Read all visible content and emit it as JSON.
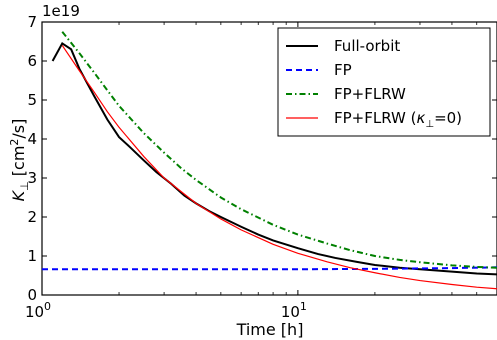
{
  "chart_data": {
    "type": "line",
    "x_scale": "log",
    "xlim": [
      1,
      60
    ],
    "ylim": [
      0,
      7
    ],
    "y_multiplier_text": "1e19",
    "xlabel": "Time [h]",
    "ylabel_main": "K",
    "ylabel_sub": "⊥",
    "ylabel_units_open": " [cm",
    "ylabel_units_sup": "2",
    "ylabel_units_close": "/s]",
    "x_ticks": [
      {
        "value": 1,
        "label_base": "10",
        "label_exp": "0"
      },
      {
        "value": 10,
        "label_base": "10",
        "label_exp": "1"
      }
    ],
    "y_ticks": [
      0,
      1,
      2,
      3,
      4,
      5,
      6,
      7
    ],
    "grid": false,
    "legend_position": "top-right",
    "series": [
      {
        "name": "Full-orbit",
        "color": "#000000",
        "dash": "solid",
        "x": [
          1.1,
          1.2,
          1.3,
          1.4,
          1.6,
          1.8,
          2.0,
          2.2,
          2.5,
          2.8,
          3.2,
          3.6,
          4.0,
          4.5,
          5.0,
          6.0,
          7.0,
          8.0,
          10,
          12,
          14,
          17,
          20,
          25,
          30,
          40,
          50,
          60
        ],
        "y": [
          6.0,
          6.45,
          6.3,
          5.8,
          5.1,
          4.5,
          4.05,
          3.8,
          3.45,
          3.15,
          2.85,
          2.55,
          2.35,
          2.15,
          2.0,
          1.75,
          1.55,
          1.4,
          1.2,
          1.05,
          0.95,
          0.85,
          0.77,
          0.7,
          0.66,
          0.6,
          0.55,
          0.53
        ]
      },
      {
        "name": "FP",
        "color": "#0000ff",
        "dash": "dashed",
        "x": [
          1,
          2,
          5,
          10,
          20,
          40,
          60
        ],
        "y": [
          0.66,
          0.66,
          0.66,
          0.66,
          0.67,
          0.69,
          0.71
        ]
      },
      {
        "name": "FP+FLRW",
        "color": "#008000",
        "dash": "dashdot",
        "x": [
          1.2,
          1.4,
          1.6,
          1.8,
          2.0,
          2.5,
          3.0,
          3.5,
          4.0,
          5.0,
          6.0,
          8.0,
          10,
          13,
          16,
          20,
          25,
          30,
          40,
          50,
          60
        ],
        "y": [
          6.75,
          6.2,
          5.7,
          5.25,
          4.85,
          4.15,
          3.65,
          3.25,
          2.95,
          2.5,
          2.2,
          1.8,
          1.55,
          1.32,
          1.15,
          1.0,
          0.9,
          0.84,
          0.76,
          0.72,
          0.7
        ]
      },
      {
        "name_main": "FP+FLRW (",
        "name_greek": "κ",
        "name_sub": "⊥",
        "name_tail": "=0)",
        "color": "#ff0000",
        "dash": "solid",
        "x": [
          1.2,
          1.4,
          1.6,
          1.8,
          2.0,
          2.5,
          3.0,
          3.5,
          4.0,
          5.0,
          6.0,
          8.0,
          10,
          13,
          16,
          20,
          25,
          30,
          40,
          50,
          60
        ],
        "y": [
          6.4,
          5.75,
          5.2,
          4.7,
          4.3,
          3.55,
          3.0,
          2.65,
          2.35,
          1.95,
          1.67,
          1.3,
          1.07,
          0.85,
          0.7,
          0.57,
          0.45,
          0.37,
          0.27,
          0.2,
          0.16
        ]
      }
    ]
  }
}
